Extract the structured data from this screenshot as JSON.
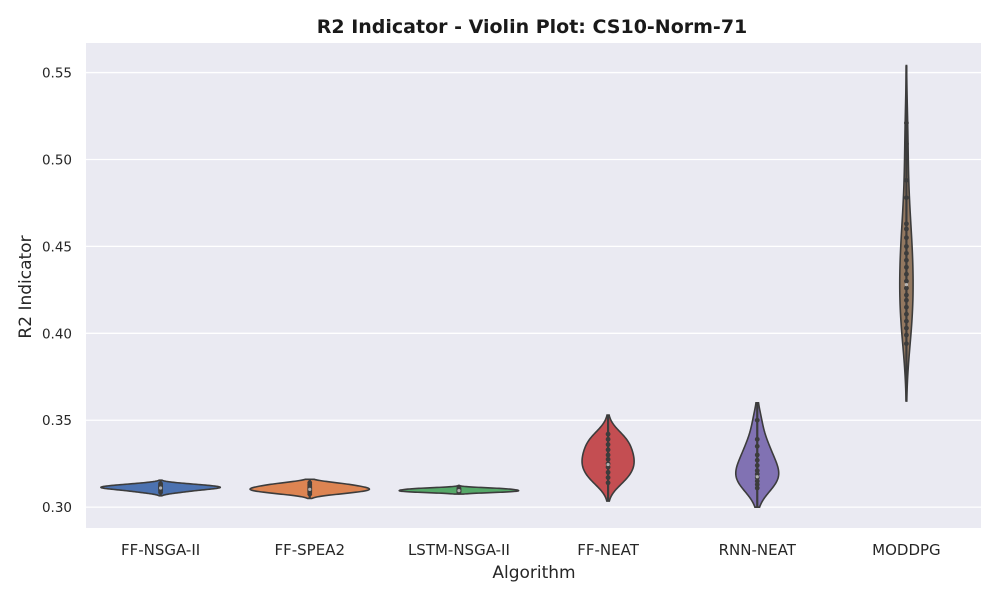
{
  "chart_data": {
    "type": "violin",
    "title": "R2 Indicator - Violin Plot: CS10-Norm-71",
    "xlabel": "Algorithm",
    "ylabel": "R2 Indicator",
    "ylim": [
      0.288,
      0.567
    ],
    "yticks": [
      0.3,
      0.35,
      0.4,
      0.45,
      0.5,
      0.55
    ],
    "ytick_labels": [
      "0.30",
      "0.35",
      "0.40",
      "0.45",
      "0.50",
      "0.55"
    ],
    "grid": true,
    "background": "#eaeaf2",
    "grid_color": "#ffffff",
    "categories": [
      "FF-NSGA-II",
      "FF-SPEA2",
      "LSTM-NSGA-II",
      "FF-NEAT",
      "RNN-NEAT",
      "MODDPG"
    ],
    "series": [
      {
        "category": "FF-NSGA-II",
        "color": "#4c72b0",
        "min": 0.3065,
        "max": 0.3155,
        "median": 0.311,
        "points": [
          0.3085,
          0.3095,
          0.3102,
          0.3108,
          0.3111,
          0.3114,
          0.3118,
          0.3122,
          0.3128,
          0.3135
        ]
      },
      {
        "category": "FF-SPEA2",
        "color": "#dd8452",
        "min": 0.305,
        "max": 0.316,
        "median": 0.3102,
        "points": [
          0.3075,
          0.3085,
          0.3092,
          0.3098,
          0.3103,
          0.3108,
          0.3115,
          0.3122,
          0.313,
          0.314
        ]
      },
      {
        "category": "LSTM-NSGA-II",
        "color": "#55a868",
        "min": 0.3075,
        "max": 0.3125,
        "median": 0.3095,
        "points": [
          0.3085,
          0.3088,
          0.3092,
          0.3095,
          0.3098,
          0.3102,
          0.3106,
          0.311
        ]
      },
      {
        "category": "FF-NEAT",
        "color": "#c44e52",
        "min": 0.3035,
        "max": 0.353,
        "median": 0.3245,
        "points": [
          0.314,
          0.317,
          0.32,
          0.323,
          0.325,
          0.3275,
          0.33,
          0.333,
          0.336,
          0.339,
          0.342
        ]
      },
      {
        "category": "RNN-NEAT",
        "color": "#8172b3",
        "min": 0.3,
        "max": 0.36,
        "median": 0.3175,
        "points": [
          0.311,
          0.313,
          0.315,
          0.317,
          0.319,
          0.321,
          0.324,
          0.327,
          0.33,
          0.335,
          0.339,
          0.35
        ]
      },
      {
        "category": "MODDPG",
        "color": "#937860",
        "min": 0.361,
        "max": 0.554,
        "median": 0.428,
        "points": [
          0.394,
          0.399,
          0.403,
          0.407,
          0.411,
          0.415,
          0.419,
          0.422,
          0.426,
          0.43,
          0.434,
          0.438,
          0.442,
          0.446,
          0.45,
          0.455,
          0.46,
          0.463,
          0.478,
          0.488,
          0.509,
          0.521
        ]
      }
    ]
  }
}
